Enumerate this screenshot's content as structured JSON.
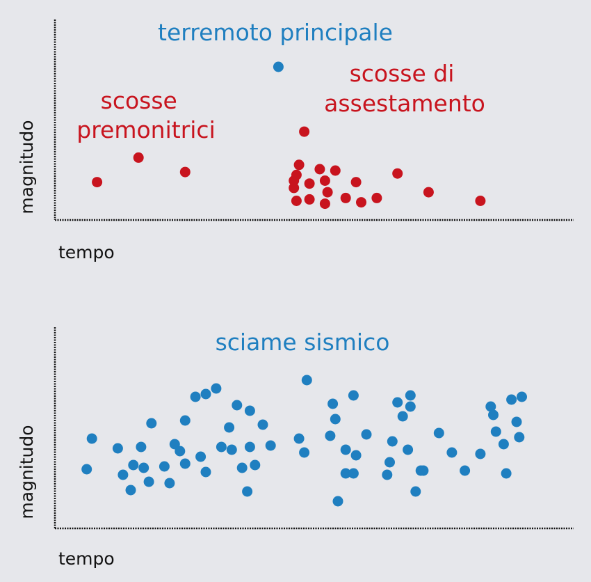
{
  "colors": {
    "background": "#e6e7eb",
    "blue": "#1f7fc0",
    "red": "#c8141e",
    "axis": "#111111",
    "text": "#111111"
  },
  "chart_data": [
    {
      "type": "scatter",
      "xlabel": "tempo",
      "ylabel": "magnitudo",
      "axes_ticks": false,
      "grid": false,
      "annotations": {
        "main": "terremoto principale",
        "foreshocks": "scosse premonitrici",
        "aftershocks_line1": "scosse di",
        "aftershocks_line2": "assestamento"
      },
      "xlim": [
        0,
        100
      ],
      "ylim": [
        0,
        100
      ],
      "series": [
        {
          "color": "#c8141e",
          "points": [
            [
              8,
              20
            ],
            [
              16,
              37
            ],
            [
              25,
              27
            ]
          ]
        },
        {
          "color": "#1f7fc0",
          "points": [
            [
              43,
              100
            ]
          ]
        },
        {
          "color": "#c8141e",
          "points": [
            [
              48,
              55
            ],
            [
              47,
              32
            ],
            [
              46.5,
              25
            ],
            [
              46,
              21
            ],
            [
              46,
              16
            ],
            [
              46.5,
              7
            ],
            [
              49,
              19
            ],
            [
              49,
              8
            ],
            [
              51,
              29
            ],
            [
              52,
              21
            ],
            [
              52,
              5
            ],
            [
              52.5,
              13
            ],
            [
              54,
              28
            ],
            [
              56,
              9
            ],
            [
              58,
              20
            ],
            [
              59,
              6
            ],
            [
              62,
              9
            ],
            [
              66,
              26
            ],
            [
              72,
              13
            ],
            [
              82,
              7
            ]
          ]
        }
      ]
    },
    {
      "type": "scatter",
      "xlabel": "tempo",
      "ylabel": "magnitudo",
      "axes_ticks": false,
      "grid": false,
      "annotations": {
        "main": "sciame sismico"
      },
      "xlim": [
        0,
        100
      ],
      "ylim": [
        0,
        100
      ],
      "series": [
        {
          "color": "#1f7fc0",
          "points": [
            [
              6,
              33
            ],
            [
              7,
              55
            ],
            [
              12,
              48
            ],
            [
              13,
              29
            ],
            [
              14.5,
              18
            ],
            [
              15,
              36
            ],
            [
              16.5,
              49
            ],
            [
              17,
              34
            ],
            [
              18,
              24
            ],
            [
              18.5,
              66
            ],
            [
              21,
              35
            ],
            [
              22,
              23
            ],
            [
              23,
              51
            ],
            [
              24,
              46
            ],
            [
              25,
              37
            ],
            [
              25,
              68
            ],
            [
              27,
              85
            ],
            [
              28,
              42
            ],
            [
              29,
              31
            ],
            [
              29,
              87
            ],
            [
              31,
              91
            ],
            [
              32,
              49
            ],
            [
              33.5,
              63
            ],
            [
              34,
              47
            ],
            [
              35,
              79
            ],
            [
              36,
              34
            ],
            [
              37,
              17
            ],
            [
              37.5,
              49
            ],
            [
              37.5,
              75
            ],
            [
              38.5,
              36
            ],
            [
              40,
              65
            ],
            [
              41.5,
              50
            ],
            [
              47,
              55
            ],
            [
              48,
              45
            ],
            [
              48.5,
              97
            ],
            [
              53,
              57
            ],
            [
              53.5,
              80
            ],
            [
              54,
              69
            ],
            [
              54.5,
              10
            ],
            [
              56,
              47
            ],
            [
              56,
              30
            ],
            [
              57.5,
              30
            ],
            [
              57.5,
              86
            ],
            [
              58,
              43
            ],
            [
              60,
              58
            ],
            [
              64,
              29
            ],
            [
              64.5,
              38
            ],
            [
              65,
              53
            ],
            [
              66,
              81
            ],
            [
              67,
              71
            ],
            [
              68,
              47
            ],
            [
              68.5,
              78
            ],
            [
              68.5,
              86
            ],
            [
              69.5,
              17
            ],
            [
              70.5,
              32
            ],
            [
              71,
              32
            ],
            [
              74,
              59
            ],
            [
              76.5,
              45
            ],
            [
              79,
              32
            ],
            [
              82,
              44
            ],
            [
              84,
              78
            ],
            [
              84.5,
              72
            ],
            [
              85,
              60
            ],
            [
              86.5,
              51
            ],
            [
              87,
              30
            ],
            [
              88,
              83
            ],
            [
              89,
              67
            ],
            [
              89.5,
              56
            ],
            [
              90,
              85
            ]
          ]
        }
      ]
    }
  ]
}
